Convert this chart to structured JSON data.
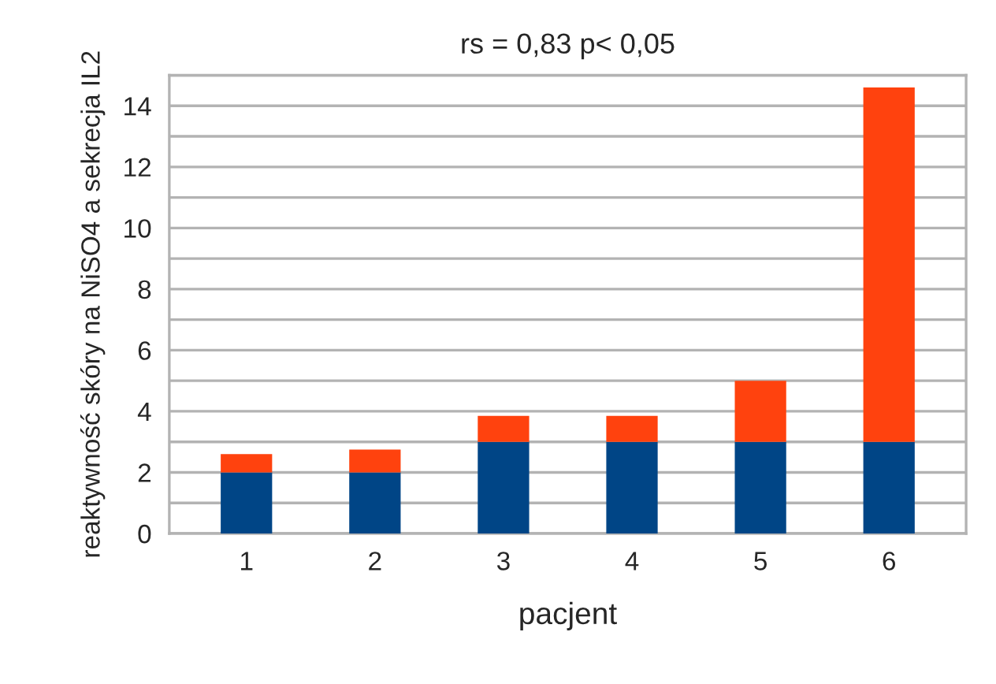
{
  "chart_data": {
    "type": "bar",
    "title": "rs = 0,83 p< 0,05",
    "xlabel": "pacjent",
    "ylabel": "reaktywność skóry na NiSO4 a sekrecja IL2",
    "categories": [
      "1",
      "2",
      "3",
      "4",
      "5",
      "6"
    ],
    "stacked": true,
    "series": [
      {
        "color": "#004586",
        "values": [
          2,
          2,
          3,
          3,
          3,
          3
        ]
      },
      {
        "color": "#ff420e",
        "values": [
          0.6,
          0.75,
          0.85,
          0.85,
          2.0,
          11.6
        ]
      }
    ],
    "ylim": [
      0,
      15
    ],
    "yticks": [
      0,
      {
        "value": 1,
        "label": null
      },
      2,
      {
        "value": 3,
        "label": null
      },
      4,
      {
        "value": 5,
        "label": null
      },
      6,
      {
        "value": 7,
        "label": null
      },
      8,
      {
        "value": 9,
        "label": null
      },
      10,
      {
        "value": 11,
        "label": null
      },
      12,
      {
        "value": 13,
        "label": null
      },
      14,
      {
        "value": 15,
        "label": null
      }
    ],
    "grid": "y"
  }
}
